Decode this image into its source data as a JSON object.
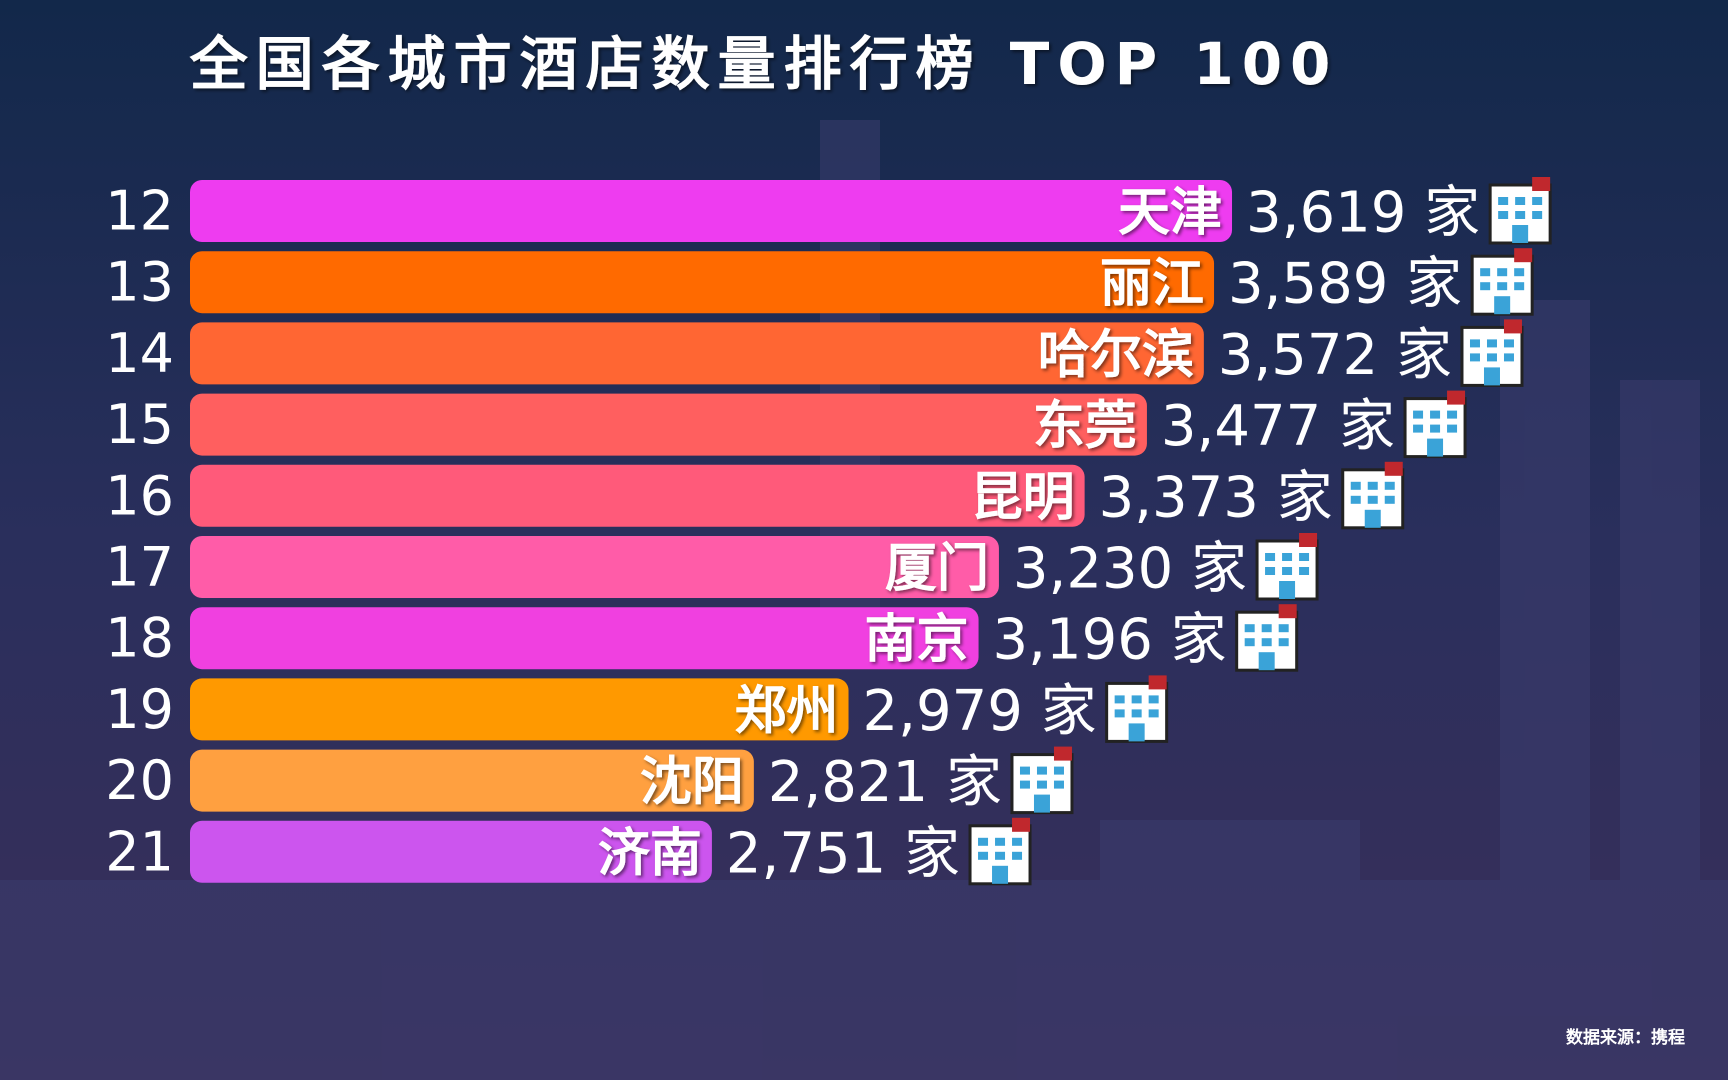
{
  "chart_data": {
    "type": "bar",
    "orientation": "horizontal",
    "title": "全国各城市酒店数量排行榜 TOP 100",
    "ranks": [
      12,
      13,
      14,
      15,
      16,
      17,
      18,
      19,
      20,
      21
    ],
    "categories": [
      "天津",
      "丽江",
      "哈尔滨",
      "东莞",
      "昆明",
      "厦门",
      "南京",
      "郑州",
      "沈阳",
      "济南"
    ],
    "values": [
      3619,
      3589,
      3572,
      3477,
      3373,
      3230,
      3196,
      2979,
      2821,
      2751
    ],
    "value_labels": [
      "3,619 家",
      "3,589 家",
      "3,572 家",
      "3,477 家",
      "3,373 家",
      "3,230 家",
      "3,196 家",
      "2,979 家",
      "2,821 家",
      "2,751 家"
    ],
    "colors": [
      "#ee3cf0",
      "#ff6a00",
      "#ff6633",
      "#ff5f5f",
      "#ff5a7a",
      "#ff5ca8",
      "#f040e0",
      "#ff9900",
      "#ffa040",
      "#cc55ee"
    ],
    "xlim": [
      1880,
      4400
    ],
    "source": "数据来源：携程"
  }
}
